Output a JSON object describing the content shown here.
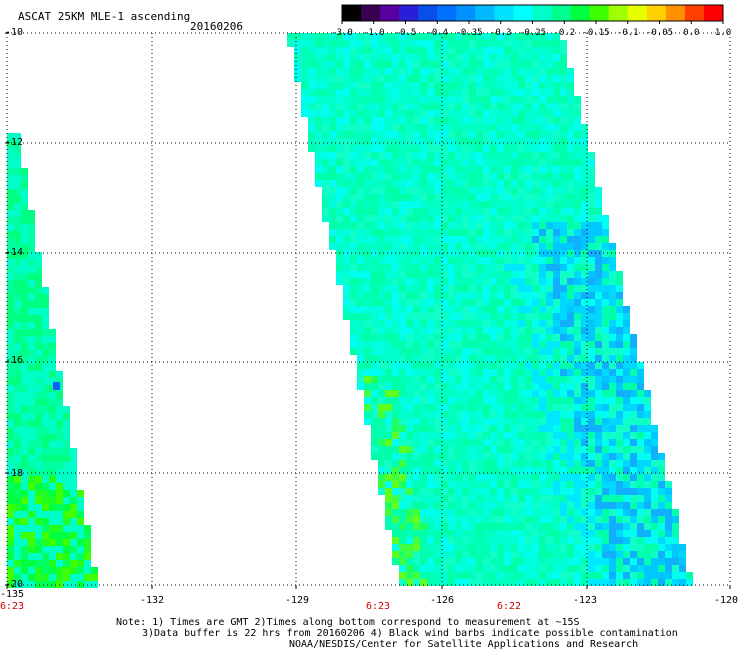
{
  "header": {
    "title": "ASCAT 25KM MLE-1 ascending",
    "date": "20160206"
  },
  "colorbar": {
    "colors": [
      "#000000",
      "#3a0050",
      "#5a00a0",
      "#2a1fd8",
      "#0a4ee8",
      "#0070ff",
      "#0090ff",
      "#00b8ff",
      "#00e0ff",
      "#00ffff",
      "#00ffc8",
      "#00ff90",
      "#00ff40",
      "#40ff00",
      "#a0ff00",
      "#e8ff00",
      "#ffd000",
      "#ff9000",
      "#ff4000",
      "#ff0000"
    ],
    "labels": [
      "-3.0",
      "-1.0",
      "-0.5",
      "-0.4",
      "-0.35",
      "-0.3",
      "-0.25",
      "-0.2",
      "-0.15",
      "-0.1",
      "-0.05",
      "0.0",
      "1.0"
    ]
  },
  "axes": {
    "lat_labels": [
      "-10",
      "-12",
      "-14",
      "-16",
      "-18",
      "-20"
    ],
    "lon_labels": [
      "-135",
      "-132",
      "-129",
      "-126",
      "-123",
      "-120"
    ],
    "time_labels": [
      {
        "text": "6:23",
        "lon": -135
      },
      {
        "text": "6:23",
        "lon": -127.5
      },
      {
        "text": "6:22",
        "lon": -124.8
      }
    ]
  },
  "swaths": [
    {
      "name": "west swath",
      "region": "left",
      "dominant_color": "#00ffa0"
    },
    {
      "name": "central swath",
      "region": "center",
      "dominant_color": "#00ffcc"
    }
  ],
  "notes": {
    "line1": "Note: 1) Times are GMT 2)Times along bottom correspond to measurement at ~15S",
    "line2": "3)Data buffer is 22 hrs from 20160206 4) Black wind barbs indicate possible contamination",
    "line3": "NOAA/NESDIS/Center for Satellite Applications and Research"
  }
}
